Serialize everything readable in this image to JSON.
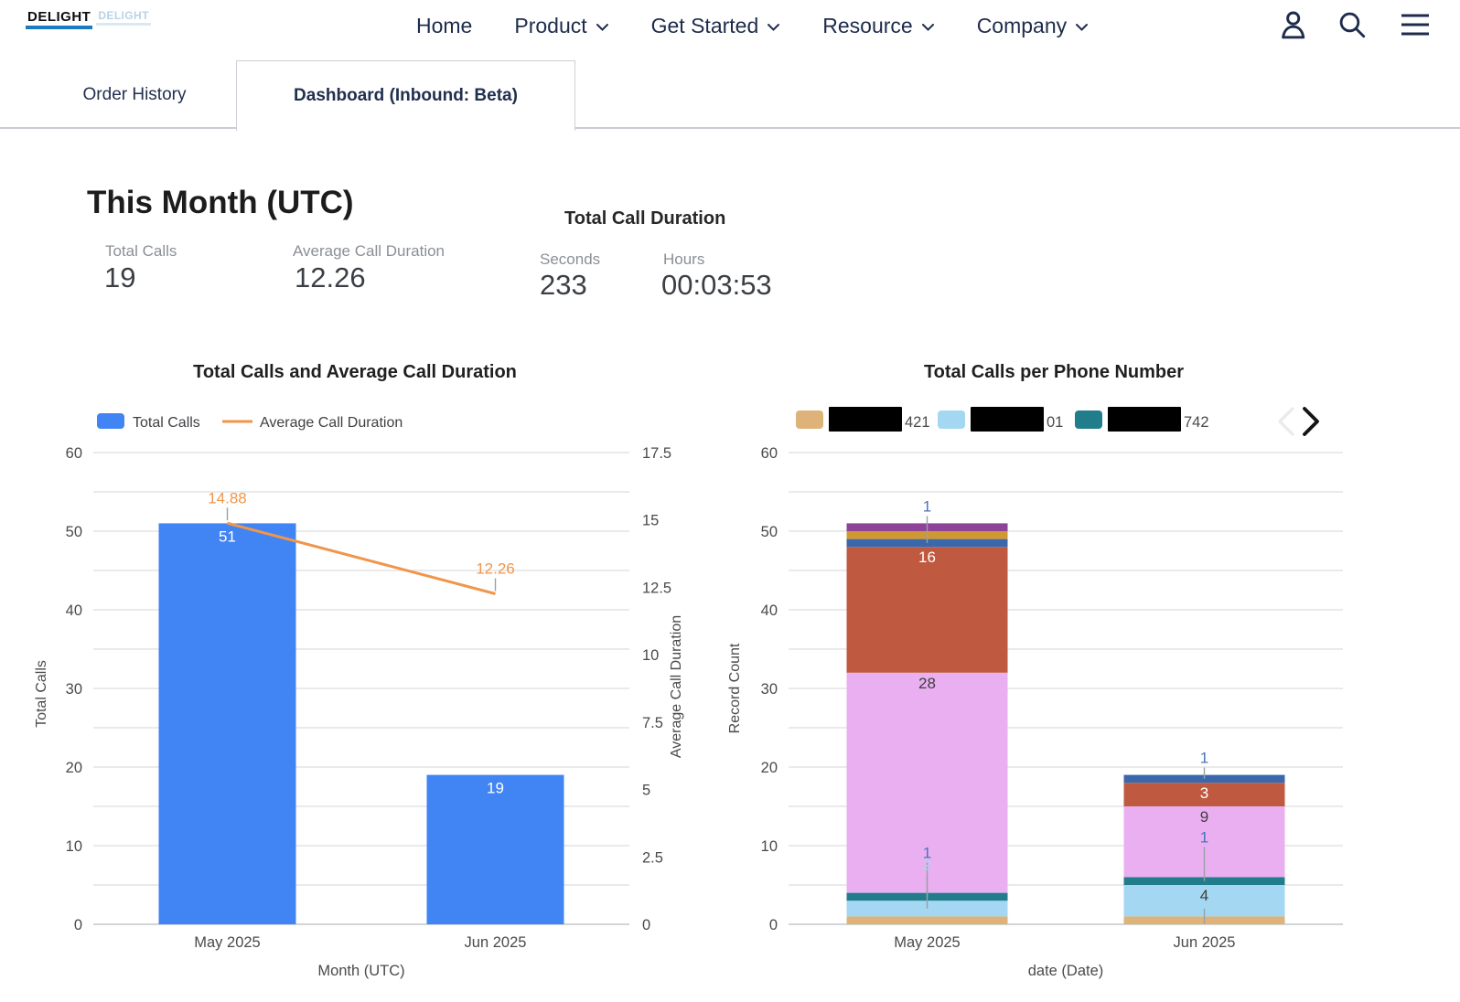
{
  "header": {
    "logo_text": "DELIGHT",
    "logo_ghost_text": "DELIGHT",
    "nav_items": [
      {
        "label": "Home",
        "has_dropdown": false
      },
      {
        "label": "Product",
        "has_dropdown": true
      },
      {
        "label": "Get Started",
        "has_dropdown": true
      },
      {
        "label": "Resource",
        "has_dropdown": true
      },
      {
        "label": "Company",
        "has_dropdown": true
      }
    ]
  },
  "tabs": [
    {
      "label": "Order History",
      "active": false
    },
    {
      "label": "Dashboard (Inbound: Beta)",
      "active": true
    }
  ],
  "summary": {
    "title": "This Month (UTC)",
    "stats": [
      {
        "label": "Total Calls",
        "value": "19"
      },
      {
        "label": "Average Call Duration",
        "value": "12.26"
      }
    ],
    "duration": {
      "title": "Total Call Duration",
      "stats": [
        {
          "label": "Seconds",
          "value": "233"
        },
        {
          "label": "Hours",
          "value": "00:03:53"
        }
      ]
    }
  },
  "chart_data": [
    {
      "type": "bar+line",
      "title": "Total Calls and Average Call Duration",
      "categories": [
        "May 2025",
        "Jun 2025"
      ],
      "series": [
        {
          "name": "Total Calls",
          "type": "bar",
          "color": "#4184f3",
          "values": [
            51,
            19
          ]
        },
        {
          "name": "Average Call Duration",
          "type": "line",
          "color": "#f0964b",
          "values": [
            14.88,
            12.26
          ]
        }
      ],
      "xlabel": "Month (UTC)",
      "ylabel_left": "Total Calls",
      "ylabel_right": "Average Call Duration",
      "ylim_left": [
        0,
        60
      ],
      "yticks_left": [
        0,
        10,
        20,
        30,
        40,
        50,
        60
      ],
      "ylim_right": [
        0,
        17.5
      ],
      "yticks_right": [
        0,
        2.5,
        5,
        7.5,
        10,
        12.5,
        15,
        17.5
      ],
      "grid": true,
      "grid_minor_step_left": 5,
      "legend_position": "top-left"
    },
    {
      "type": "stacked-bar",
      "title": "Total Calls per Phone Number",
      "categories": [
        "May 2025",
        "Jun 2025"
      ],
      "xlabel": "date (Date)",
      "ylabel": "Record Count",
      "ylim": [
        0,
        60
      ],
      "yticks": [
        0,
        10,
        20,
        30,
        40,
        50,
        60
      ],
      "grid": true,
      "grid_minor_step": 5,
      "legend": [
        {
          "redacted": true,
          "visible_suffix": "421",
          "color": "#ddb379"
        },
        {
          "redacted": true,
          "visible_suffix": "01",
          "color": "#a3d7f2"
        },
        {
          "redacted": true,
          "visible_suffix": "742",
          "color": "#217d8b"
        }
      ],
      "pagination": {
        "prev_enabled": false,
        "next_enabled": true
      },
      "series": [
        {
          "suffix": "421",
          "color": "#ddb379",
          "values": [
            1,
            1
          ]
        },
        {
          "suffix": "01",
          "color": "#a3d7f2",
          "values": [
            2,
            4
          ]
        },
        {
          "suffix": "742",
          "color": "#217d8b",
          "values": [
            1,
            1
          ]
        },
        {
          "suffix": "",
          "color": "#e9aff0",
          "values": [
            28,
            9
          ]
        },
        {
          "suffix": "",
          "color": "#bf5940",
          "values": [
            16,
            3
          ]
        },
        {
          "suffix": "",
          "color": "#3a68ad",
          "values": [
            1,
            1
          ]
        },
        {
          "suffix": "",
          "color": "#cf9832",
          "values": [
            1,
            0
          ]
        },
        {
          "suffix": "",
          "color": "#8e4298",
          "values": [
            1,
            0
          ]
        }
      ],
      "totals": [
        51,
        19
      ]
    }
  ],
  "chart_style": {
    "grid_color": "#dcdee1",
    "baseline_color": "#c4c7ca",
    "axis_text_color": "#4a4a4a",
    "title_color": "#1f1f1f",
    "inside_label_dark": "#3f3f3f",
    "inside_label_white": "#ffffff",
    "small_label_blue": "#4a74b8",
    "small_label_lightblue": "#a3d7f2",
    "leader_color": "#9aa0a6",
    "white_label_on": "#bf5940"
  }
}
